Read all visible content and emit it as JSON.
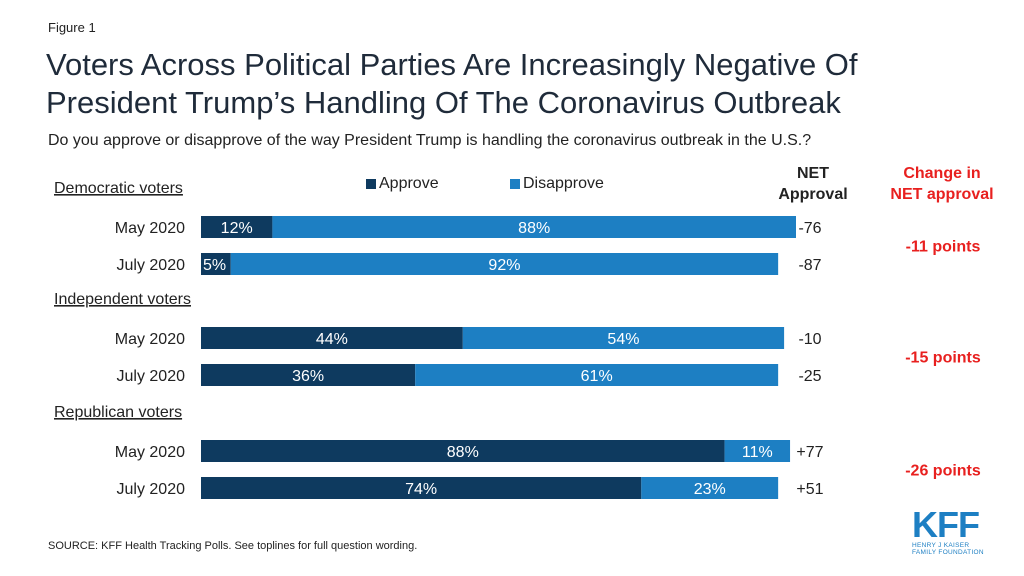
{
  "figure_label": "Figure 1",
  "title": "Voters Across Political Parties Are Increasingly Negative Of President Trump’s Handling Of The Coronavirus Outbreak",
  "subtitle": "Do you approve or disapprove of the way President Trump is handling the coronavirus outbreak in the U.S.?",
  "legend": {
    "approve_label": "Approve",
    "disapprove_label": "Disapprove"
  },
  "net_header": [
    "NET",
    "Approval"
  ],
  "change_header": [
    "Change in",
    "NET approval"
  ],
  "source": "SOURCE: KFF Health Tracking Polls. See toplines for full question wording.",
  "logo": {
    "mark": "KFF",
    "sub1": "HENRY J KAISER",
    "sub2": "FAMILY FOUNDATION"
  },
  "colors": {
    "approve": "#0e3a5f",
    "disapprove": "#1d7fc3",
    "change": "#e8201f",
    "text": "#222222"
  },
  "chart_data": {
    "type": "bar",
    "orientation": "horizontal",
    "stacked": true,
    "grid": false,
    "legend_position": "top",
    "groups": [
      {
        "name": "Democratic voters",
        "change": "-11 points",
        "rows": [
          {
            "label": "May 2020",
            "approve": 12,
            "approve_label": "12%",
            "disapprove": 88,
            "disapprove_label": "88%",
            "net": "-76"
          },
          {
            "label": "July 2020",
            "approve": 5,
            "approve_label": "5%",
            "disapprove": 92,
            "disapprove_label": "92%",
            "net": "-87"
          }
        ]
      },
      {
        "name": "Independent voters",
        "change": "-15 points",
        "rows": [
          {
            "label": "May 2020",
            "approve": 44,
            "approve_label": "44%",
            "disapprove": 54,
            "disapprove_label": "54%",
            "net": "-10"
          },
          {
            "label": "July 2020",
            "approve": 36,
            "approve_label": "36%",
            "disapprove": 61,
            "disapprove_label": "61%",
            "net": "-25"
          }
        ]
      },
      {
        "name": "Republican voters",
        "change": "-26 points",
        "rows": [
          {
            "label": "May 2020",
            "approve": 88,
            "approve_label": "88%",
            "disapprove": 11,
            "disapprove_label": "11%",
            "net": "+77"
          },
          {
            "label": "July 2020",
            "approve": 74,
            "approve_label": "74%",
            "disapprove": 23,
            "disapprove_label": "23%",
            "net": "+51"
          }
        ]
      }
    ],
    "series": [
      {
        "name": "Approve"
      },
      {
        "name": "Disapprove"
      }
    ]
  }
}
